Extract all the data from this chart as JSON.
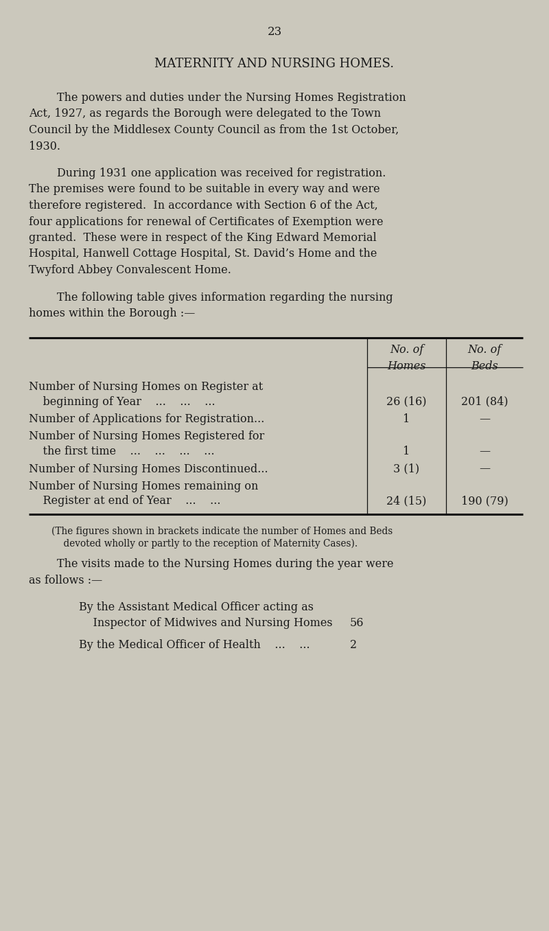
{
  "page_number": "23",
  "title": "MATERNITY AND NURSING HOMES.",
  "background_color": "#cbc8bc",
  "text_color": "#1a1a1a",
  "p1_lines": [
    [
      "        The powers and duties under the Nursing Homes Registration",
      true
    ],
    [
      "Act, 1927, as regards the Borough were delegated to the Town",
      false
    ],
    [
      "Council by the Middlesex County Council as from the 1st October,",
      false
    ],
    [
      "1930.",
      false
    ]
  ],
  "p2_lines": [
    [
      "        During 1931 one application was received for registration.",
      true
    ],
    [
      "The premises were found to be suitable in every way and were",
      false
    ],
    [
      "therefore registered.  In accordance with Section 6 of the Act,",
      false
    ],
    [
      "four applications for renewal of Certificates of Exemption were",
      false
    ],
    [
      "granted.  These were in respect of the King Edward Memorial",
      false
    ],
    [
      "Hospital, Hanwell Cottage Hospital, St. David’s Home and the",
      false
    ],
    [
      "Twyford Abbey Convalescent Home.",
      false
    ]
  ],
  "p3_lines": [
    [
      "        The following table gives information regarding the nursing",
      true
    ],
    [
      "homes within the Borough :—",
      false
    ]
  ],
  "table_header1": [
    "No. of",
    "No. of"
  ],
  "table_header2": [
    "Homes",
    "Beds"
  ],
  "table_rows": [
    {
      "line1": "Number of Nursing Homes on Register at",
      "line2": "    beginning of Year    ...    ...    ...",
      "val1": "26 (16)",
      "val2": "201 (84)"
    },
    {
      "line1": "Number of Applications for Registration...",
      "line2": null,
      "val1": "1",
      "val2": "—"
    },
    {
      "line1": "Number of Nursing Homes Registered for",
      "line2": "    the first time    ...    ...    ...    ...",
      "val1": "1",
      "val2": "—"
    },
    {
      "line1": "Number of Nursing Homes Discontinued...",
      "line2": null,
      "val1": "3 (1)",
      "val2": "—"
    },
    {
      "line1": "Number of Nursing Homes remaining on",
      "line2": "    Register at end of Year    ...    ...",
      "val1": "24 (15)",
      "val2": "190 (79)"
    }
  ],
  "footnote_lines": [
    "(The figures shown in brackets indicate the number of Homes and Beds",
    "    devoted wholly or partly to the reception of Maternity Cases)."
  ],
  "p4_lines": [
    [
      "        The visits made to the Nursing Homes during the year were",
      true
    ],
    [
      "as follows :—",
      false
    ]
  ],
  "visit_rows": [
    {
      "line1": "By the Assistant Medical Officer acting as",
      "line2": "    Inspector of Midwives and Nursing Homes",
      "val": "56"
    },
    {
      "line1": "By the Medical Officer of Health    ...    ...",
      "line2": null,
      "val": "2"
    }
  ]
}
